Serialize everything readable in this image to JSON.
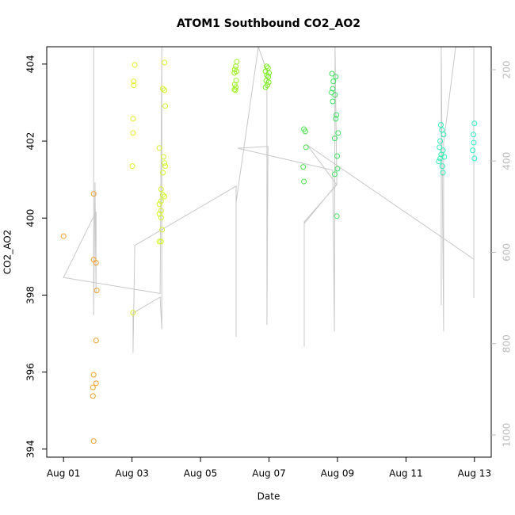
{
  "chart_data": {
    "type": "scatter",
    "title": "ATOM1 Southbound CO2_AO2",
    "xlabel": "Date",
    "ylabel": "CO2_AO2",
    "xlim": [
      -0.49,
      12.49
    ],
    "ylim": [
      393.79,
      404.45
    ],
    "y2lim": [
      1048.6,
      149.7
    ],
    "xticks": [
      {
        "value": 0,
        "label": "Aug 01"
      },
      {
        "value": 2,
        "label": "Aug 03"
      },
      {
        "value": 4,
        "label": "Aug 05"
      },
      {
        "value": 6,
        "label": "Aug 07"
      },
      {
        "value": 8,
        "label": "Aug 09"
      },
      {
        "value": 10,
        "label": "Aug 11"
      },
      {
        "value": 12,
        "label": "Aug 13"
      }
    ],
    "yticks": [
      394,
      396,
      398,
      400,
      402,
      404
    ],
    "y2ticks": [
      200,
      400,
      600,
      800,
      1000
    ],
    "y2color": "#bbbbbb",
    "series": [
      {
        "type": "line",
        "axis": "y2",
        "color": "#c8c8c8",
        "x": [
          0.88,
          0.88,
          0.92,
          0.95,
          0.95,
          0,
          2.82,
          2.87,
          2.87,
          2.82,
          2.03,
          2.03,
          2.08,
          5.04,
          5.04,
          5.04,
          5.69,
          5.94,
          5.94,
          5.97,
          5.09,
          7.86,
          7.91,
          7.93,
          7.98,
          7.03,
          7.03,
          7.03,
          7.98,
          7.12,
          11.98,
          11.98,
          11.98,
          11.45,
          11.1,
          11.1,
          11.03,
          11.03
        ],
        "values": [
          151,
          738,
          447,
          690,
          511,
          655,
          690,
          150,
          768,
          698,
          733,
          820,
          585,
          455,
          785,
          490,
          150,
          203,
          759,
          368,
          372,
          420,
          773,
          150,
          450,
          537,
          806,
          533,
          452,
          365,
          615,
          700,
          150,
          150,
          360,
          773,
          150,
          716
        ]
      },
      {
        "type": "scatter",
        "color": "#f5a030",
        "x": [
          0,
          0.88,
          0.88,
          0.95,
          0.97,
          0.95,
          0.88,
          0.95,
          0.86,
          0.86,
          0.88
        ],
        "values": [
          399.53,
          400.63,
          398.92,
          398.84,
          398.12,
          396.82,
          395.93,
          395.71,
          395.6,
          395.38,
          394.21
        ]
      },
      {
        "type": "scatter",
        "color": "#e2ee28",
        "x": [
          2.08,
          2.05,
          2.05,
          2.03,
          2.03,
          2.01,
          2.03
        ],
        "values": [
          403.98,
          403.55,
          403.45,
          402.58,
          402.21,
          401.35,
          397.54
        ]
      },
      {
        "type": "scatter",
        "color": "#d4f428",
        "x": [
          2.95,
          2.9,
          2.95,
          2.97,
          2.8,
          2.92,
          2.95,
          2.97,
          2.9,
          2.85,
          2.9,
          2.95,
          2.85,
          2.8,
          2.85,
          2.8,
          2.85,
          2.88,
          2.8,
          2.85
        ],
        "values": [
          404.04,
          403.36,
          403.32,
          402.91,
          401.82,
          401.59,
          401.43,
          401.35,
          401.18,
          400.75,
          400.6,
          400.56,
          400.44,
          400.36,
          400.19,
          400.11,
          400.01,
          399.7,
          399.39,
          399.39
        ]
      },
      {
        "type": "scatter",
        "color": "#9cf020",
        "x": [
          5.06,
          5.03,
          5.0,
          5.05,
          4.99,
          5.04,
          5.0,
          5.03,
          4.99,
          5.02
        ],
        "values": [
          404.06,
          403.94,
          403.86,
          403.81,
          403.77,
          403.57,
          403.47,
          403.4,
          403.34,
          403.32
        ]
      },
      {
        "type": "scatter",
        "color": "#7aee20",
        "x": [
          5.93,
          5.97,
          5.9,
          6.0,
          5.94,
          5.98,
          5.92,
          5.99,
          5.95,
          5.9
        ],
        "values": [
          403.94,
          403.9,
          403.81,
          403.77,
          403.71,
          403.67,
          403.57,
          403.53,
          403.45,
          403.4
        ]
      },
      {
        "type": "scatter",
        "color": "#48e048",
        "x": [
          7.02,
          7.06,
          7.08,
          7.0,
          7.02
        ],
        "values": [
          402.31,
          402.25,
          401.84,
          401.33,
          400.95
        ]
      },
      {
        "type": "scatter",
        "color": "#40e060",
        "x": [
          7.84,
          7.95,
          7.88,
          7.86,
          7.83,
          7.93,
          7.86,
          7.97,
          7.95,
          8.02,
          7.92,
          7.99,
          8.0,
          7.92,
          7.98
        ],
        "values": [
          403.75,
          403.67,
          403.55,
          403.36,
          403.26,
          403.2,
          403.03,
          402.68,
          402.58,
          402.21,
          402.07,
          401.61,
          401.28,
          401.14,
          400.05
        ]
      },
      {
        "type": "scatter",
        "color": "#2ff0b4",
        "x": [
          11.02,
          11.05,
          11.1,
          11.0,
          10.98,
          11.08,
          11.03,
          11.12,
          11.0,
          10.96,
          11.06,
          11.08
        ],
        "values": [
          402.42,
          402.29,
          402.17,
          402.0,
          401.84,
          401.76,
          401.65,
          401.59,
          401.55,
          401.47,
          401.35,
          401.18
        ]
      },
      {
        "type": "scatter",
        "color": "#2cf0c8",
        "x": [
          12.0,
          11.97,
          11.98,
          11.95,
          12.0
        ],
        "values": [
          402.46,
          402.17,
          401.96,
          401.76,
          401.55
        ]
      }
    ]
  }
}
